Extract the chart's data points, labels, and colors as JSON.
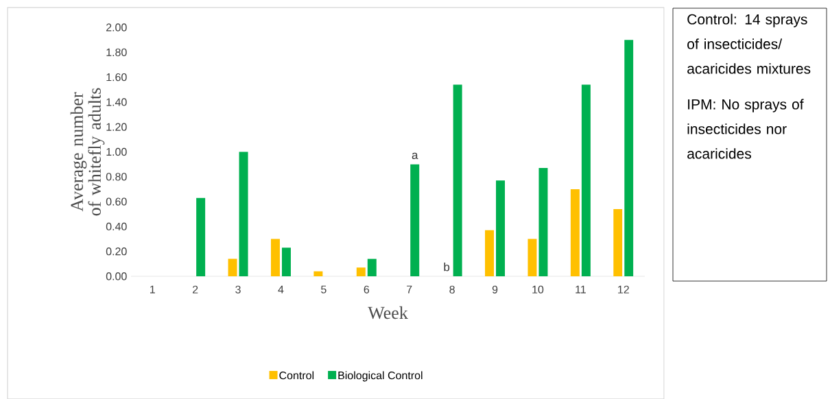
{
  "chart_data": {
    "type": "bar",
    "xlabel": "Week",
    "ylabel": "Average number of whitefly adults",
    "categories": [
      "1",
      "2",
      "3",
      "4",
      "5",
      "6",
      "7",
      "8",
      "9",
      "10",
      "11",
      "12"
    ],
    "series": [
      {
        "name": "Control",
        "color": "#ffc000",
        "values": [
          0,
          0,
          0.14,
          0.3,
          0.04,
          0.07,
          0,
          0,
          0.37,
          0.3,
          0.7,
          0.54
        ]
      },
      {
        "name": "Biological Control",
        "color": "#00b050",
        "values": [
          0,
          0.63,
          1.0,
          0.23,
          0,
          0.14,
          0.9,
          1.54,
          0.77,
          0.87,
          1.54,
          1.9
        ]
      }
    ],
    "ylim": [
      0,
      2
    ],
    "yticks": [
      {
        "value": 0,
        "label": "0.00"
      },
      {
        "value": 0.2,
        "label": "0.20"
      },
      {
        "value": 0.4,
        "label": "0.40"
      },
      {
        "value": 0.6,
        "label": "0.60"
      },
      {
        "value": 0.8,
        "label": "0.80"
      },
      {
        "value": 1,
        "label": "1.00"
      },
      {
        "value": 1.2,
        "label": "1.20"
      },
      {
        "value": 1.4,
        "label": "1.40"
      },
      {
        "value": 1.6,
        "label": "1.60"
      },
      {
        "value": 1.8,
        "label": "1.80"
      },
      {
        "value": 2,
        "label": "2.00"
      }
    ],
    "legend": "bottom",
    "annotations": [
      {
        "text": "a",
        "x": "7",
        "y": 0.9
      },
      {
        "text": "b",
        "x": "8",
        "y": 0.0
      },
      "Control: 14 sprays of insecticides/ acaricides mixtures",
      "IPM: No sprays of insecticides nor acaricides"
    ]
  }
}
